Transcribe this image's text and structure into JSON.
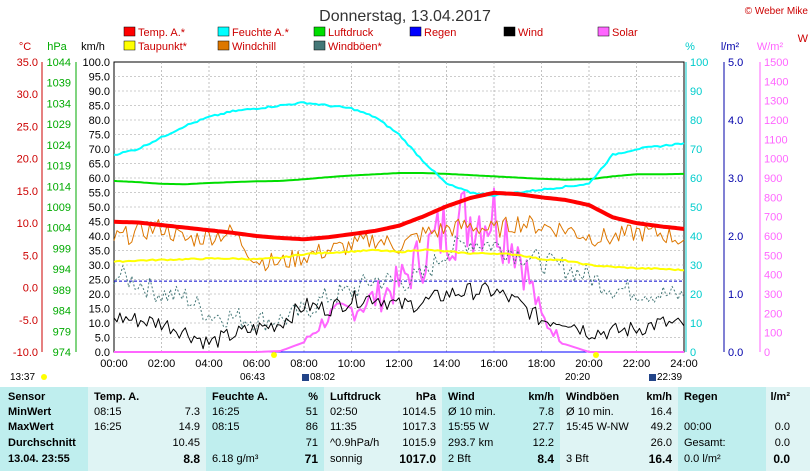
{
  "header": {
    "title": "Donnerstag, 13.04.2017",
    "credit": "© Weber Mike"
  },
  "legend": [
    {
      "label": "Temp. A.*",
      "color": "#ff0000"
    },
    {
      "label": "Feuchte A.*",
      "color": "#00ffff"
    },
    {
      "label": "Luftdruck",
      "color": "#00dd00"
    },
    {
      "label": "Regen",
      "color": "#0000ff"
    },
    {
      "label": "Wind",
      "color": "#000000"
    },
    {
      "label": "Solar",
      "color": "#ff66ff"
    },
    {
      "label": "Taupunkt*",
      "color": "#ffff00"
    },
    {
      "label": "Windchill",
      "color": "#dd7700"
    },
    {
      "label": "Windböen*",
      "color": "#447777"
    }
  ],
  "axes": {
    "temp": {
      "unit": "°C",
      "ticks": [
        "35.0",
        "30.0",
        "25.0",
        "20.0",
        "15.0",
        "10.0",
        "5.0",
        "0.0",
        "-5.0",
        "-10.0"
      ],
      "color": "#ff0000"
    },
    "pressure": {
      "unit": "hPa",
      "ticks": [
        "1044",
        "1039",
        "1034",
        "1029",
        "1024",
        "1019",
        "1014",
        "1009",
        "1004",
        "999",
        "994",
        "989",
        "984",
        "979",
        "974"
      ],
      "color": "#00aa00"
    },
    "wind": {
      "unit": "km/h",
      "ticks": [
        "100.0",
        "95.0",
        "90.0",
        "85.0",
        "80.0",
        "75.0",
        "70.0",
        "65.0",
        "60.0",
        "55.0",
        "50.0",
        "45.0",
        "40.0",
        "35.0",
        "30.0",
        "25.0",
        "20.0",
        "15.0",
        "10.0",
        "5.0",
        "0.0"
      ],
      "color": "#000000"
    },
    "humidity": {
      "unit": "%",
      "ticks": [
        "100",
        "90",
        "80",
        "70",
        "60",
        "50",
        "40",
        "30",
        "20",
        "10",
        "0"
      ],
      "color": "#00cccc"
    },
    "rain": {
      "unit": "l/m²",
      "ticks": [
        "5.0",
        "4.0",
        "3.0",
        "2.0",
        "1.0",
        "0.0"
      ],
      "color": "#0000aa"
    },
    "solar": {
      "unit": "W/m²",
      "ticks": [
        "1500",
        "1400",
        "1300",
        "1200",
        "1100",
        "1000",
        "900",
        "800",
        "700",
        "600",
        "500",
        "400",
        "300",
        "200",
        "100",
        "0"
      ],
      "color": "#ff66ff"
    },
    "time": {
      "ticks": [
        "00:00",
        "02:00",
        "04:00",
        "06:00",
        "08:00",
        "10:00",
        "12:00",
        "14:00",
        "16:00",
        "18:00",
        "20:00",
        "22:00",
        "24:00"
      ]
    }
  },
  "sun_markers": {
    "current": "13:37",
    "sunrise": "06:43",
    "moonrise": "08:02",
    "sunset": "20:20",
    "moonset": "22:39"
  },
  "chart_data": {
    "type": "line",
    "x_label": "",
    "x_unit": "hours",
    "x": [
      0,
      1,
      2,
      3,
      4,
      5,
      6,
      7,
      8,
      9,
      10,
      11,
      12,
      13,
      14,
      15,
      16,
      17,
      18,
      19,
      20,
      21,
      22,
      23,
      24
    ],
    "series": [
      {
        "name": "Temp. A.*",
        "axis": "temp",
        "values": [
          10.2,
          10.1,
          9.7,
          9.3,
          8.9,
          8.5,
          8.0,
          7.7,
          7.5,
          7.8,
          8.3,
          8.8,
          9.6,
          11.0,
          12.6,
          13.9,
          14.7,
          14.5,
          14.0,
          13.6,
          12.8,
          10.9,
          10.0,
          9.5,
          9.1
        ]
      },
      {
        "name": "Feuchte A.*",
        "axis": "humidity",
        "values": [
          68,
          70,
          74,
          78,
          81,
          83,
          84,
          85,
          86,
          85,
          84,
          81,
          75,
          66,
          58,
          55,
          54,
          55,
          56,
          57,
          58,
          68,
          70,
          71,
          72
        ]
      },
      {
        "name": "Luftdruck",
        "axis": "pressure",
        "values": [
          1015.3,
          1015.0,
          1014.6,
          1014.5,
          1014.8,
          1015.0,
          1015.2,
          1015.3,
          1015.7,
          1016.2,
          1016.6,
          1016.9,
          1017.2,
          1017.2,
          1017.0,
          1016.7,
          1016.4,
          1016.1,
          1015.8,
          1015.6,
          1015.7,
          1016.4,
          1016.9,
          1016.9,
          1017.0
        ]
      },
      {
        "name": "Taupunkt*",
        "axis": "temp",
        "values": [
          4.0,
          4.2,
          4.3,
          4.4,
          4.5,
          4.5,
          4.4,
          4.6,
          5.2,
          5.4,
          5.6,
          5.8,
          5.5,
          5.9,
          5.6,
          5.3,
          5.3,
          5.1,
          4.4,
          4.2,
          3.5,
          3.2,
          3.0,
          2.9,
          2.7
        ]
      },
      {
        "name": "Windchill",
        "axis": "temp",
        "values": [
          7.6,
          8.5,
          9.4,
          7.4,
          8.0,
          8.6,
          4.3,
          3.8,
          4.9,
          5.8,
          6.5,
          7.5,
          6.4,
          8.3,
          9.1,
          9.6,
          8.9,
          10.1,
          9.5,
          9.1,
          7.9,
          7.7,
          8.6,
          8.4,
          7.4
        ]
      },
      {
        "name": "Windböen*",
        "axis": "wind",
        "values": [
          27,
          24,
          20,
          19,
          13,
          12,
          11,
          11,
          14,
          19,
          21,
          25,
          24,
          26,
          35,
          38,
          37,
          34,
          31,
          29,
          26,
          22,
          21,
          20,
          19
        ]
      },
      {
        "name": "Wind",
        "axis": "wind",
        "values": [
          12,
          11,
          10,
          7,
          3,
          6,
          8,
          10,
          16,
          15,
          18,
          19,
          16,
          17,
          20,
          21,
          21,
          17,
          11,
          11,
          7,
          7,
          8,
          10,
          9
        ]
      },
      {
        "name": "Solar",
        "axis": "solar",
        "values": [
          0,
          0,
          0,
          0,
          0,
          0,
          0,
          5,
          50,
          180,
          220,
          280,
          350,
          500,
          650,
          700,
          720,
          550,
          180,
          40,
          0,
          0,
          0,
          0,
          0
        ]
      },
      {
        "name": "Regen",
        "axis": "rain",
        "values": [
          0,
          0,
          0,
          0,
          0,
          0,
          0,
          0,
          0,
          0,
          0,
          0,
          0,
          0,
          0,
          0,
          0,
          0,
          0,
          0,
          0,
          0,
          0,
          0,
          0
        ]
      }
    ],
    "reference_line": {
      "axis": "temp",
      "value": 1.0,
      "color": "#0000cc"
    }
  },
  "table": {
    "sensor": {
      "header": "Sensor",
      "rows": [
        "MinWert",
        "MaxWert",
        "Durchschnitt",
        "13.04. 23:55"
      ]
    },
    "temp": {
      "header": "Temp. A.",
      "unit": "",
      "rows": [
        [
          "08:15",
          "7.3"
        ],
        [
          "16:25",
          "14.9"
        ],
        [
          "",
          "10.45"
        ],
        [
          "",
          "8.8"
        ]
      ]
    },
    "feuchte": {
      "header": "Feuchte A.",
      "unit": "%",
      "rows": [
        [
          "16:25",
          "51"
        ],
        [
          "08:15",
          "86"
        ],
        [
          "",
          "71"
        ],
        [
          "6.18 g/m³",
          "71"
        ]
      ]
    },
    "luftdruck": {
      "header": "Luftdruck",
      "unit": "hPa",
      "rows": [
        [
          "02:50",
          "1014.5"
        ],
        [
          "11:35",
          "1017.3"
        ],
        [
          "^0.9hPa/h",
          "1015.9"
        ],
        [
          "sonnig",
          "1017.0"
        ]
      ]
    },
    "wind": {
      "header": "Wind",
      "unit": "km/h",
      "rows": [
        [
          "Ø 10 min.",
          "7.8"
        ],
        [
          "15:55    W",
          "27.7"
        ],
        [
          "293.7 km",
          "12.2"
        ],
        [
          "2 Bft",
          "8.4"
        ]
      ]
    },
    "windboeen": {
      "header": "Windböen",
      "unit": "km/h",
      "rows": [
        [
          "Ø 10 min.",
          "16.4"
        ],
        [
          "15:45  W-NW",
          "49.2"
        ],
        [
          "",
          "26.0"
        ],
        [
          "3 Bft",
          "16.4"
        ]
      ]
    },
    "regen": {
      "header": "Regen",
      "unit": "l/m²",
      "rows": [
        [
          "",
          ""
        ],
        [
          "00:00",
          "0.0"
        ],
        [
          "Gesamt:",
          "0.0"
        ],
        [
          "0.0 l/m²",
          "0.0"
        ]
      ]
    }
  }
}
